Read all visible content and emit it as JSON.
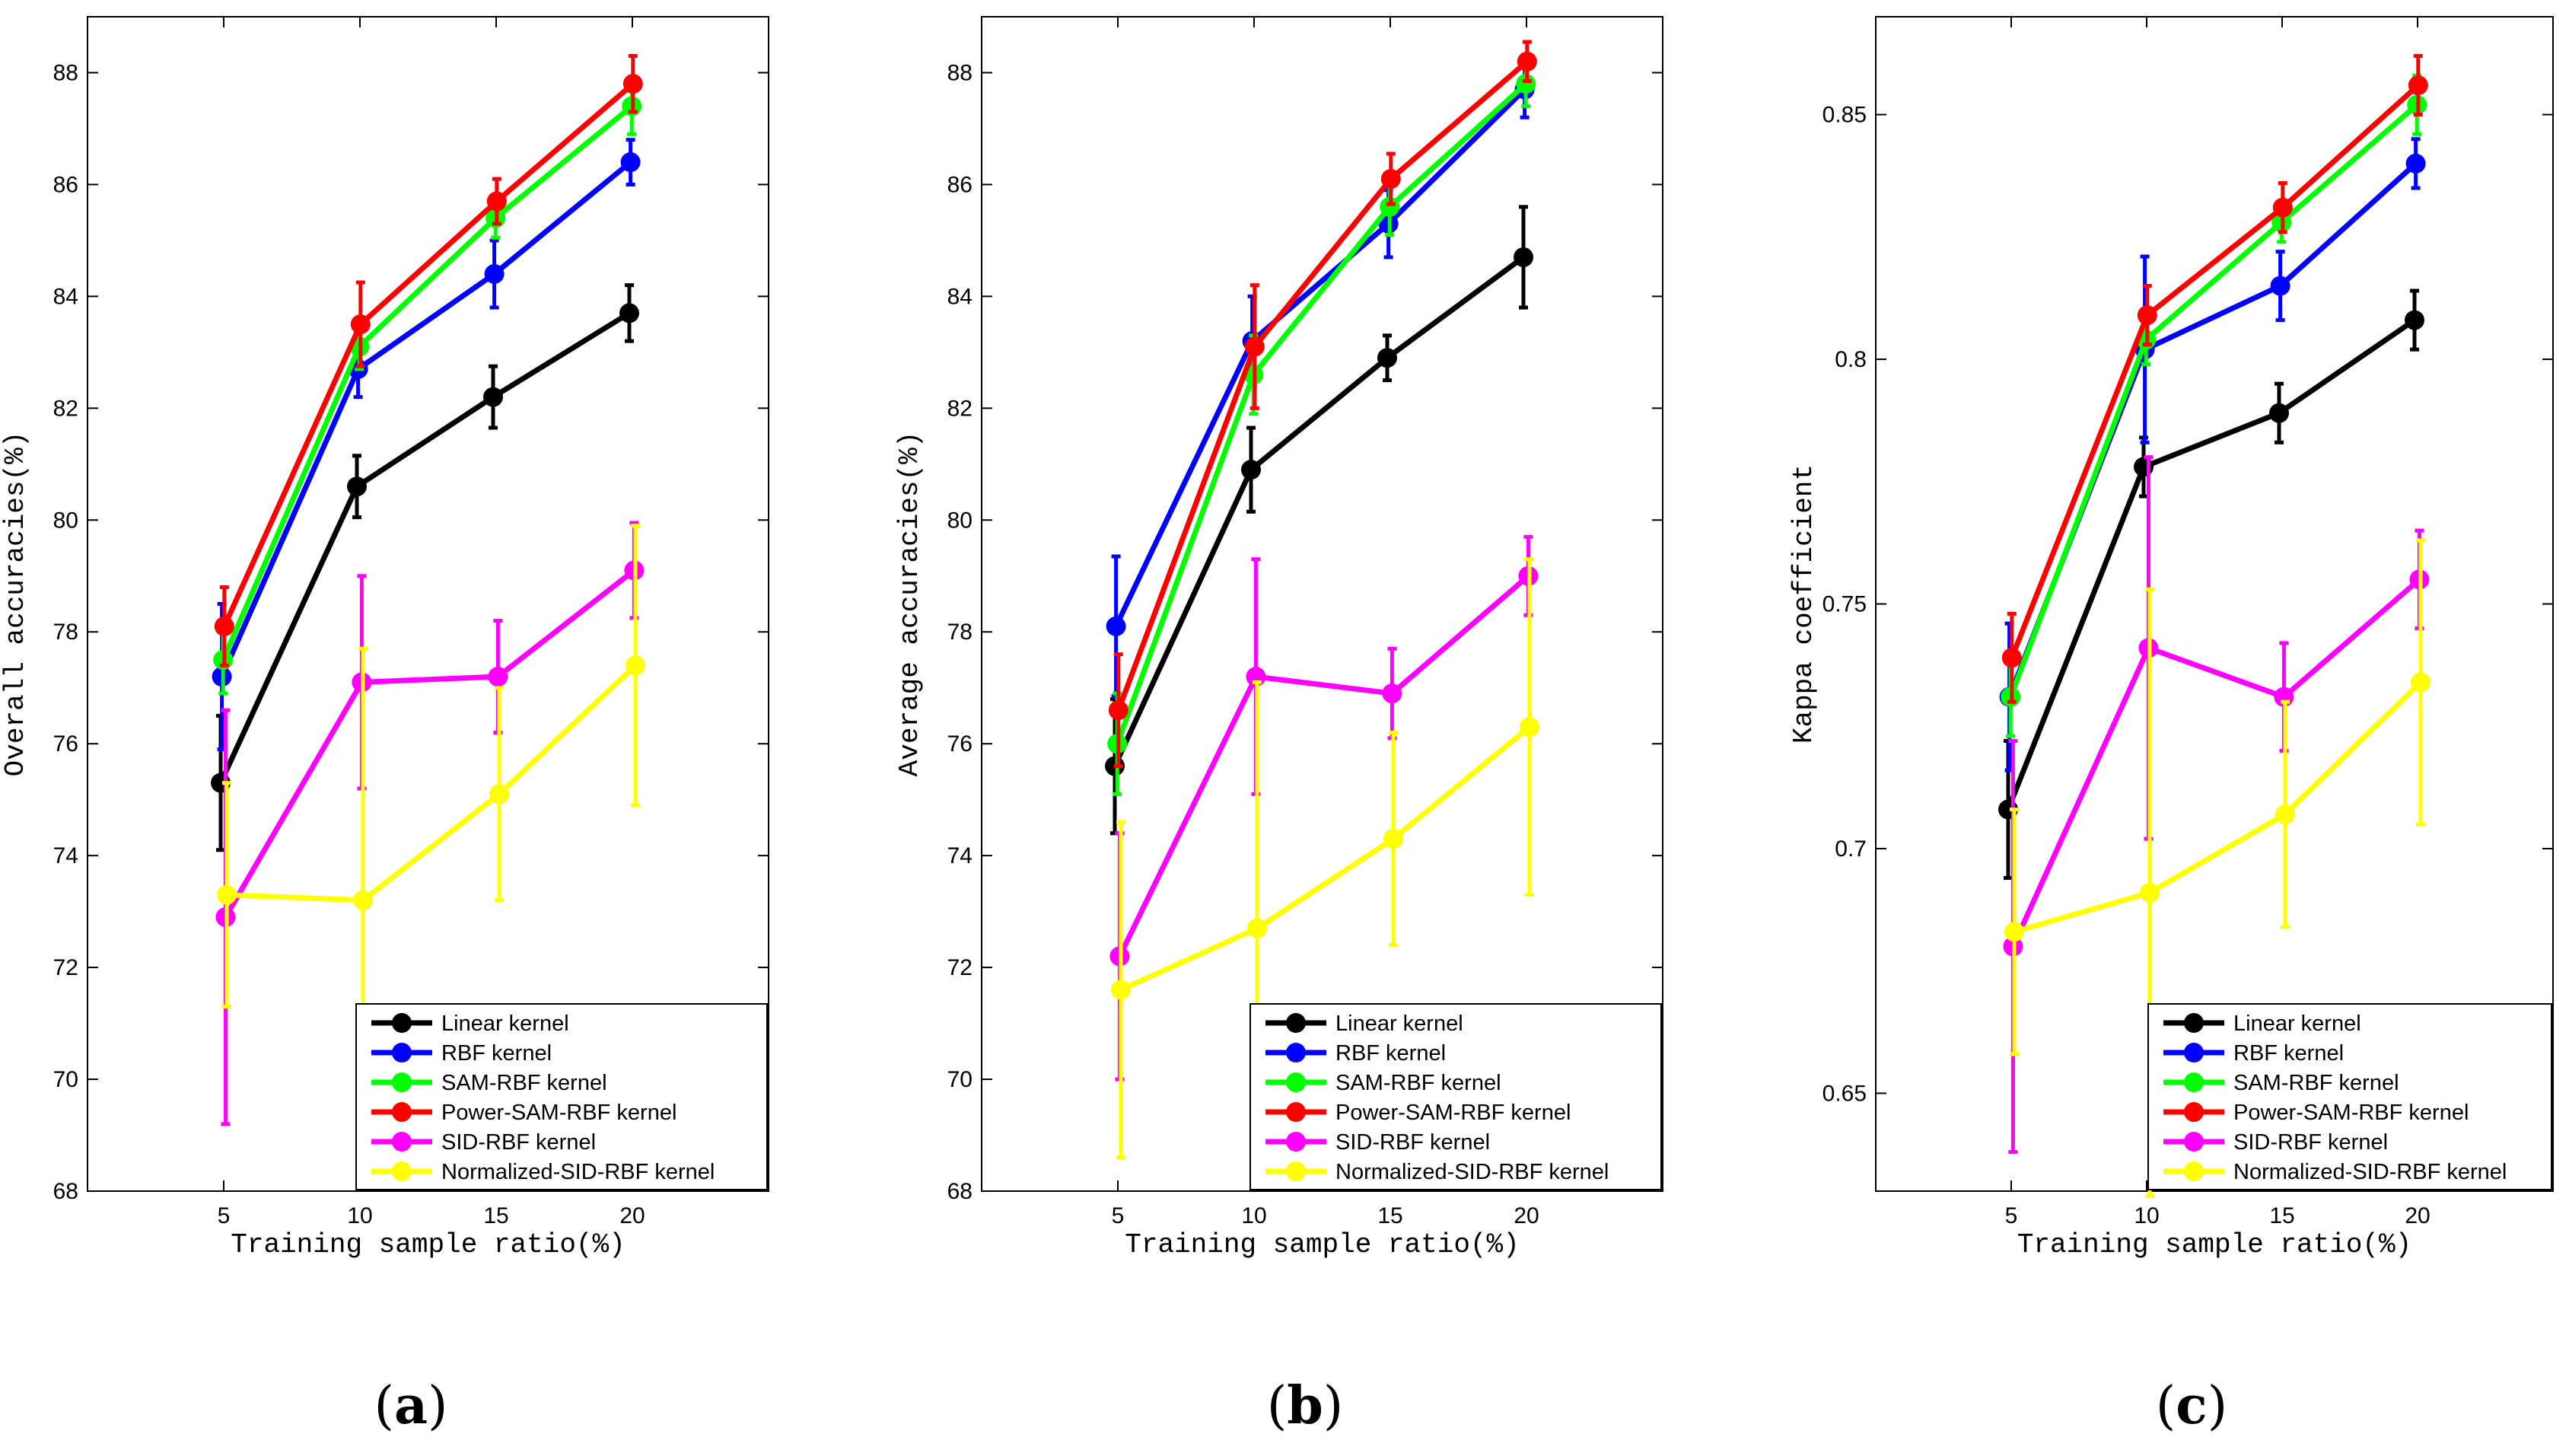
{
  "chart_data": [
    {
      "type": "line",
      "panel_label": "a",
      "xlabel": "Training sample ratio(%)",
      "ylabel": "Overall accuracies(%)",
      "categories": [
        5,
        10,
        15,
        20
      ],
      "xtick_labels": [
        "5",
        "10",
        "15",
        "20"
      ],
      "xlim": [
        0,
        25
      ],
      "ylim": [
        68,
        89
      ],
      "ytick_labels": [
        "68",
        "70",
        "72",
        "74",
        "76",
        "78",
        "80",
        "82",
        "84",
        "86",
        "88"
      ],
      "legend_position": "bottom-right",
      "series": [
        {
          "name": "Linear kernel",
          "color": "#000000",
          "values": [
            75.3,
            80.6,
            82.2,
            83.7
          ],
          "err": [
            1.2,
            0.55,
            0.55,
            0.5
          ]
        },
        {
          "name": "RBF kernel",
          "color": "#0000ff",
          "values": [
            77.2,
            82.7,
            84.4,
            86.4
          ],
          "err": [
            1.3,
            0.5,
            0.6,
            0.4
          ]
        },
        {
          "name": "SAM-RBF kernel",
          "color": "#00ff00",
          "values": [
            77.5,
            83.1,
            85.4,
            87.4
          ],
          "err": [
            0.6,
            0.4,
            0.35,
            0.5
          ]
        },
        {
          "name": "Power-SAM-RBF kernel",
          "color": "#ff0000",
          "values": [
            78.1,
            83.5,
            85.7,
            87.8
          ],
          "err": [
            0.7,
            0.75,
            0.4,
            0.5
          ]
        },
        {
          "name": "SID-RBF kernel",
          "color": "#ff00ff",
          "values": [
            72.9,
            77.1,
            77.2,
            79.1
          ],
          "err": [
            3.7,
            1.9,
            1.0,
            0.85
          ]
        },
        {
          "name": "Normalized-SID-RBF kernel",
          "color": "#ffff00",
          "values": [
            73.3,
            73.2,
            75.1,
            77.4
          ],
          "err": [
            2.0,
            4.5,
            1.9,
            2.5
          ]
        }
      ]
    },
    {
      "type": "line",
      "panel_label": "b",
      "xlabel": "Training sample ratio(%)",
      "ylabel": "Average accuracies(%)",
      "categories": [
        5,
        10,
        15,
        20
      ],
      "xtick_labels": [
        "5",
        "10",
        "15",
        "20"
      ],
      "xlim": [
        0,
        25
      ],
      "ylim": [
        68,
        89
      ],
      "ytick_labels": [
        "68",
        "70",
        "72",
        "74",
        "76",
        "78",
        "80",
        "82",
        "84",
        "86",
        "88"
      ],
      "legend_position": "bottom-right",
      "series": [
        {
          "name": "Linear kernel",
          "color": "#000000",
          "values": [
            75.6,
            80.9,
            82.9,
            84.7
          ],
          "err": [
            1.2,
            0.75,
            0.4,
            0.9
          ]
        },
        {
          "name": "RBF kernel",
          "color": "#0000ff",
          "values": [
            78.1,
            83.2,
            85.3,
            87.7
          ],
          "err": [
            1.25,
            0.8,
            0.6,
            0.5
          ]
        },
        {
          "name": "SAM-RBF kernel",
          "color": "#00ff00",
          "values": [
            76.0,
            82.6,
            85.6,
            87.8
          ],
          "err": [
            0.9,
            0.7,
            0.5,
            0.4
          ]
        },
        {
          "name": "Power-SAM-RBF kernel",
          "color": "#ff0000",
          "values": [
            76.6,
            83.1,
            86.1,
            88.2
          ],
          "err": [
            1.0,
            1.1,
            0.45,
            0.35
          ]
        },
        {
          "name": "SID-RBF kernel",
          "color": "#ff00ff",
          "values": [
            72.2,
            77.2,
            76.9,
            79.0
          ],
          "err": [
            2.2,
            2.1,
            0.8,
            0.7
          ]
        },
        {
          "name": "Normalized-SID-RBF kernel",
          "color": "#ffff00",
          "values": [
            71.6,
            72.7,
            74.3,
            76.3
          ],
          "err": [
            3.0,
            4.4,
            1.9,
            3.0
          ]
        }
      ]
    },
    {
      "type": "line",
      "panel_label": "c",
      "xlabel": "Training sample ratio(%)",
      "ylabel": "Kappa coefficient",
      "categories": [
        5,
        10,
        15,
        20
      ],
      "xtick_labels": [
        "5",
        "10",
        "15",
        "20"
      ],
      "xlim": [
        0,
        25
      ],
      "ylim": [
        0.63,
        0.87
      ],
      "ytick_labels": [
        "0.65",
        "0.7",
        "0.75",
        "0.8",
        "0.85"
      ],
      "legend_position": "bottom-right",
      "series": [
        {
          "name": "Linear kernel",
          "color": "#000000",
          "values": [
            0.708,
            0.778,
            0.789,
            0.808
          ],
          "err": [
            0.014,
            0.006,
            0.006,
            0.006
          ]
        },
        {
          "name": "RBF kernel",
          "color": "#0000ff",
          "values": [
            0.731,
            0.802,
            0.815,
            0.84
          ],
          "err": [
            0.015,
            0.019,
            0.007,
            0.005
          ]
        },
        {
          "name": "SAM-RBF kernel",
          "color": "#00ff00",
          "values": [
            0.731,
            0.804,
            0.828,
            0.852
          ],
          "err": [
            0.008,
            0.005,
            0.004,
            0.006
          ]
        },
        {
          "name": "Power-SAM-RBF kernel",
          "color": "#ff0000",
          "values": [
            0.739,
            0.809,
            0.831,
            0.856
          ],
          "err": [
            0.009,
            0.006,
            0.005,
            0.006
          ]
        },
        {
          "name": "SID-RBF kernel",
          "color": "#ff00ff",
          "values": [
            0.68,
            0.741,
            0.731,
            0.755
          ],
          "err": [
            0.042,
            0.039,
            0.011,
            0.01
          ]
        },
        {
          "name": "Normalized-SID-RBF kernel",
          "color": "#ffff00",
          "values": [
            0.683,
            0.691,
            0.707,
            0.734
          ],
          "err": [
            0.025,
            0.062,
            0.023,
            0.029
          ]
        }
      ]
    }
  ]
}
